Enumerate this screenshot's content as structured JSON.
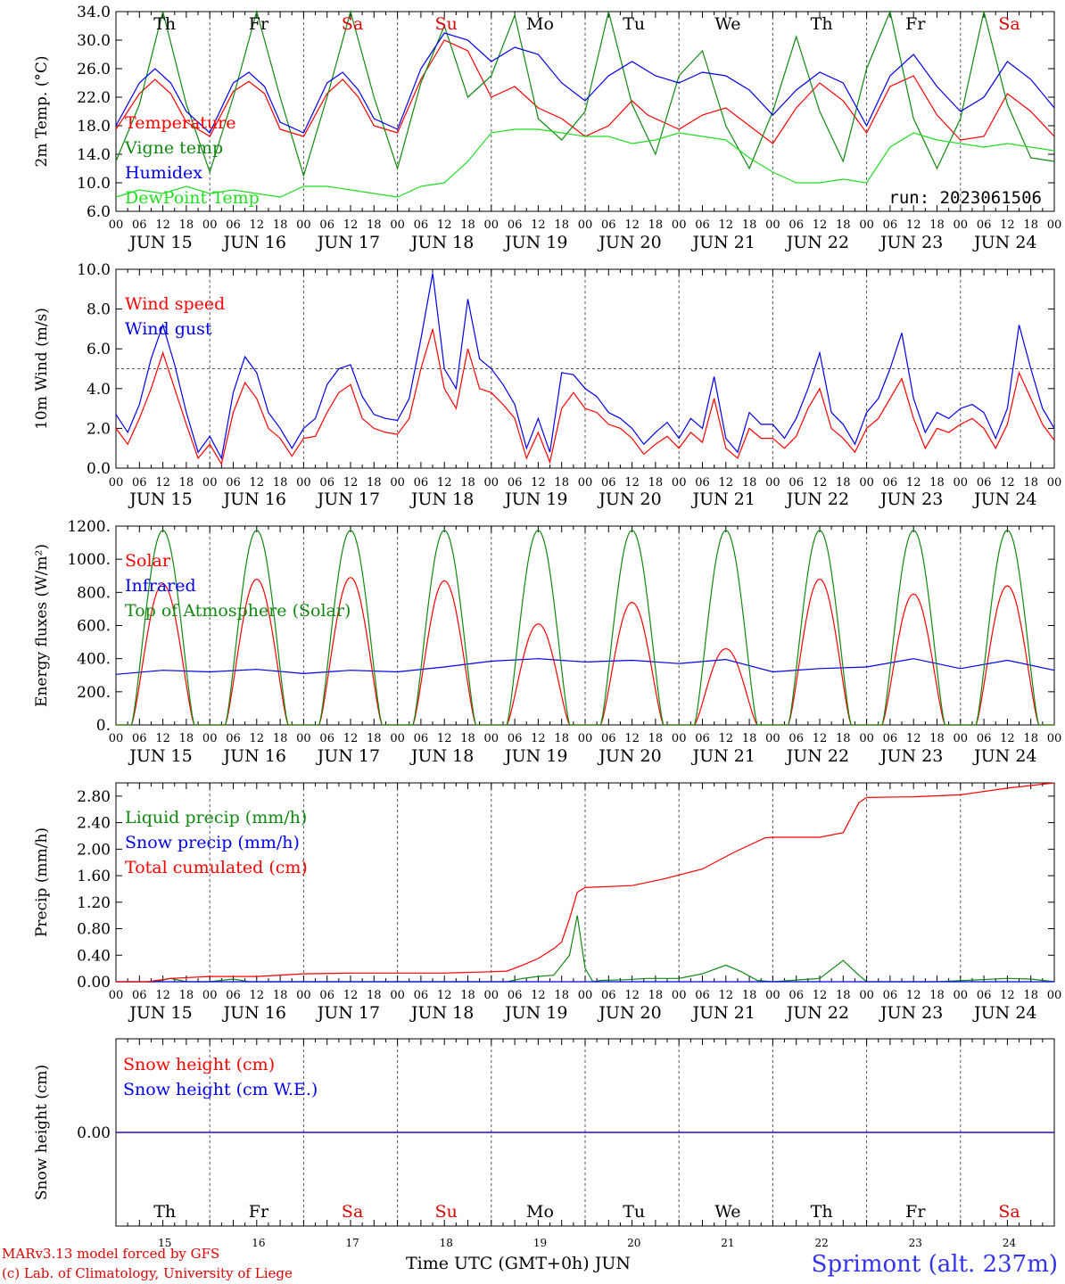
{
  "days": [
    "Th",
    "Fr",
    "Sa",
    "Su",
    "Mo",
    "Tu",
    "We",
    "Th",
    "Fr",
    "Sa"
  ],
  "weekend_days": [
    "Sa",
    "Su"
  ],
  "dates": [
    "JUN 15",
    "JUN 16",
    "JUN 17",
    "JUN 18",
    "JUN 19",
    "JUN 20",
    "JUN 21",
    "JUN 22",
    "JUN 23",
    "JUN 24"
  ],
  "date_numbers": [
    "15",
    "16",
    "17",
    "18",
    "19",
    "20",
    "21",
    "22",
    "23",
    "24"
  ],
  "hour_ticks": [
    "00",
    "06",
    "12",
    "18"
  ],
  "last_tick": "00",
  "colors": {
    "temperature": "#ff0000",
    "vigne": "#118811",
    "humidex": "#0000ee",
    "dewpoint": "#22dd22",
    "solar": "#ff0000",
    "infrared": "#0000ee",
    "toa": "#118811",
    "liquid": "#118811",
    "snow": "#0000ee",
    "cumulated": "#ff0000",
    "snowheight": "#ff0000",
    "snowwe": "#0000ee"
  },
  "footer": {
    "model": "MARv3.13 model forced by GFS",
    "lab": "(c) Lab. of Climatology, University of Liege",
    "xlabel": "Time UTC (GMT+0h) JUN",
    "station": "Sprimont (alt. 237m)"
  },
  "chart_data": [
    {
      "type": "line",
      "id": "temp",
      "ylabel": "2m Temp. (°C)",
      "ylim": [
        6.0,
        34.0
      ],
      "yticks": [
        "6.0",
        "10.0",
        "14.0",
        "18.0",
        "22.0",
        "26.0",
        "30.0",
        "34.0"
      ],
      "run_label": "run: 2023061506",
      "x_unit": "hours since JUN 15 00 UTC",
      "series": [
        {
          "name": "Temperature",
          "color_key": "temperature",
          "x": [
            0,
            6,
            10,
            14,
            18,
            24,
            30,
            34,
            38,
            42,
            48,
            54,
            58,
            62,
            66,
            72,
            78,
            84,
            90,
            96,
            102,
            108,
            114,
            120,
            126,
            132,
            136,
            144,
            150,
            156,
            162,
            168,
            174,
            180,
            186,
            192,
            198,
            204,
            210,
            216,
            222,
            228,
            234,
            240
          ],
          "y": [
            17.5,
            22.5,
            24.5,
            22.5,
            18.5,
            16.5,
            22.8,
            24.2,
            22.5,
            17.5,
            16.5,
            22.5,
            24.5,
            22.0,
            18.0,
            17.0,
            24.5,
            30.0,
            28.5,
            22.0,
            23.5,
            20.5,
            19.0,
            16.5,
            18.0,
            21.5,
            19.5,
            17.5,
            19.5,
            20.5,
            18.0,
            15.5,
            20.5,
            24.0,
            21.5,
            17.0,
            23.5,
            25.0,
            19.5,
            16.0,
            16.5,
            22.5,
            20.0,
            16.5
          ]
        },
        {
          "name": "Vigne temp",
          "color_key": "vigne",
          "x": [
            0,
            6,
            12,
            18,
            24,
            30,
            36,
            42,
            48,
            54,
            60,
            66,
            72,
            78,
            84,
            90,
            96,
            102,
            108,
            114,
            120,
            126,
            132,
            138,
            144,
            150,
            156,
            162,
            168,
            174,
            180,
            186,
            192,
            198,
            204,
            210,
            216,
            222,
            228,
            234,
            240
          ],
          "y": [
            13.0,
            21.0,
            34.0,
            21.0,
            11.5,
            22.0,
            34.0,
            22.0,
            11.0,
            22.0,
            34.0,
            22.0,
            12.0,
            24.0,
            32.0,
            22.0,
            25.0,
            33.5,
            19.0,
            16.0,
            20.0,
            34.0,
            21.0,
            14.0,
            25.0,
            28.5,
            18.0,
            12.0,
            20.0,
            30.5,
            20.0,
            13.0,
            26.0,
            34.0,
            19.0,
            12.0,
            19.0,
            34.0,
            21.0,
            13.5,
            13.0
          ]
        },
        {
          "name": "Humidex",
          "color_key": "humidex",
          "x": [
            0,
            6,
            10,
            14,
            18,
            24,
            30,
            34,
            38,
            42,
            48,
            54,
            58,
            62,
            66,
            72,
            78,
            84,
            90,
            96,
            102,
            108,
            114,
            120,
            126,
            132,
            138,
            144,
            150,
            156,
            162,
            168,
            174,
            180,
            186,
            192,
            198,
            204,
            210,
            216,
            222,
            228,
            234,
            240
          ],
          "y": [
            18.0,
            24.0,
            26.0,
            24.0,
            20.0,
            17.0,
            24.0,
            25.5,
            23.5,
            18.5,
            17.0,
            24.0,
            25.5,
            23.0,
            19.0,
            17.5,
            26.0,
            31.0,
            30.0,
            27.0,
            29.0,
            28.0,
            24.0,
            21.5,
            25.0,
            27.0,
            25.0,
            24.0,
            25.5,
            25.0,
            23.0,
            19.5,
            23.0,
            25.5,
            24.0,
            18.0,
            25.0,
            28.0,
            23.5,
            20.0,
            22.0,
            27.0,
            24.5,
            20.5
          ]
        },
        {
          "name": "DewPoint Temp",
          "color_key": "dewpoint",
          "x": [
            0,
            6,
            12,
            18,
            24,
            30,
            36,
            42,
            48,
            54,
            60,
            66,
            72,
            78,
            84,
            90,
            96,
            102,
            108,
            114,
            120,
            126,
            132,
            138,
            144,
            150,
            156,
            162,
            168,
            174,
            180,
            186,
            192,
            198,
            204,
            210,
            216,
            222,
            228,
            234,
            240
          ],
          "y": [
            8.0,
            9.0,
            8.5,
            9.5,
            8.5,
            9.0,
            8.5,
            8.0,
            9.5,
            9.5,
            9.0,
            8.5,
            8.0,
            9.5,
            10.0,
            13.0,
            17.0,
            17.5,
            17.5,
            17.0,
            16.5,
            16.5,
            15.5,
            16.0,
            17.0,
            16.5,
            16.0,
            13.5,
            11.5,
            10.0,
            10.0,
            10.5,
            10.0,
            15.0,
            17.0,
            16.0,
            15.5,
            15.0,
            15.5,
            15.0,
            14.5
          ]
        }
      ]
    },
    {
      "type": "line",
      "id": "wind",
      "ylabel": "10m Wind (m/s)",
      "ylim": [
        0.0,
        10.0
      ],
      "yticks": [
        "0.0",
        "2.0",
        "4.0",
        "6.0",
        "8.0",
        "10.0"
      ],
      "threshold": 5.0,
      "x_unit": "hours since JUN 15 00 UTC",
      "series": [
        {
          "name": "Wind speed",
          "color_key": "temperature",
          "x": [
            0,
            3,
            6,
            9,
            12,
            15,
            18,
            21,
            24,
            27,
            30,
            33,
            36,
            39,
            42,
            45,
            48,
            51,
            54,
            57,
            60,
            63,
            66,
            69,
            72,
            75,
            78,
            81,
            84,
            87,
            90,
            93,
            96,
            99,
            102,
            105,
            108,
            111,
            114,
            117,
            120,
            123,
            126,
            129,
            132,
            135,
            138,
            141,
            144,
            147,
            150,
            153,
            156,
            159,
            162,
            165,
            168,
            171,
            174,
            177,
            180,
            183,
            186,
            189,
            192,
            195,
            198,
            201,
            204,
            207,
            210,
            213,
            216,
            219,
            222,
            225,
            228,
            231,
            234,
            237,
            240
          ],
          "y": [
            2.0,
            1.2,
            2.5,
            4.0,
            5.8,
            4.0,
            2.2,
            0.5,
            1.2,
            0.2,
            2.8,
            4.3,
            3.5,
            2.0,
            1.5,
            0.6,
            1.5,
            1.6,
            2.8,
            3.8,
            4.2,
            2.5,
            2.0,
            1.8,
            1.7,
            2.5,
            5.0,
            7.0,
            4.0,
            3.0,
            6.0,
            4.0,
            3.8,
            3.2,
            2.5,
            0.5,
            1.8,
            0.3,
            3.0,
            3.8,
            3.0,
            2.8,
            2.2,
            2.0,
            1.5,
            0.7,
            1.2,
            1.6,
            1.0,
            1.8,
            1.3,
            3.5,
            1.0,
            0.5,
            2.0,
            1.5,
            1.5,
            1.0,
            1.6,
            3.0,
            4.0,
            2.0,
            1.5,
            0.8,
            2.0,
            2.5,
            3.5,
            4.5,
            2.5,
            1.0,
            2.0,
            1.8,
            2.2,
            2.5,
            2.0,
            1.0,
            2.2,
            4.8,
            3.5,
            2.2,
            1.4
          ]
        },
        {
          "name": "Wind gust",
          "color_key": "humidex",
          "x": [
            0,
            3,
            6,
            9,
            12,
            15,
            18,
            21,
            24,
            27,
            30,
            33,
            36,
            39,
            42,
            45,
            48,
            51,
            54,
            57,
            60,
            63,
            66,
            69,
            72,
            75,
            78,
            81,
            84,
            87,
            90,
            93,
            96,
            99,
            102,
            105,
            108,
            111,
            114,
            117,
            120,
            123,
            126,
            129,
            132,
            135,
            138,
            141,
            144,
            147,
            150,
            153,
            156,
            159,
            162,
            165,
            168,
            171,
            174,
            177,
            180,
            183,
            186,
            189,
            192,
            195,
            198,
            201,
            204,
            207,
            210,
            213,
            216,
            219,
            222,
            225,
            228,
            231,
            234,
            237,
            240
          ],
          "y": [
            2.7,
            1.8,
            3.2,
            5.5,
            7.2,
            5.2,
            2.8,
            0.8,
            1.6,
            0.5,
            3.8,
            5.6,
            4.8,
            2.8,
            2.0,
            1.0,
            2.0,
            2.5,
            4.2,
            5.0,
            5.2,
            3.6,
            2.7,
            2.5,
            2.4,
            3.5,
            6.5,
            9.8,
            5.0,
            4.0,
            8.5,
            5.5,
            5.0,
            4.2,
            3.2,
            1.0,
            2.5,
            0.8,
            4.8,
            4.7,
            4.0,
            3.6,
            2.8,
            2.5,
            2.0,
            1.2,
            1.8,
            2.3,
            1.5,
            2.5,
            2.0,
            4.6,
            1.5,
            0.8,
            2.8,
            2.2,
            2.2,
            1.5,
            2.5,
            4.0,
            5.8,
            2.8,
            2.2,
            1.2,
            2.8,
            3.5,
            5.0,
            6.8,
            3.5,
            1.8,
            2.8,
            2.5,
            3.0,
            3.2,
            2.8,
            1.5,
            3.0,
            7.2,
            5.0,
            3.0,
            2.0
          ]
        }
      ]
    },
    {
      "type": "line",
      "id": "flux",
      "ylabel": "Energy fluxes (W/m²)",
      "ylim": [
        0,
        1200
      ],
      "yticks": [
        "0.",
        "200.",
        "400.",
        "600.",
        "800.",
        "1000.",
        "1200."
      ],
      "x_unit": "hours since JUN 15 00 UTC",
      "series": [
        {
          "name": "Solar",
          "color_key": "solar",
          "day_peaks": [
            850,
            880,
            890,
            870,
            610,
            740,
            460,
            880,
            790,
            840
          ],
          "day_shape": "daylight_bell_04_to_20h"
        },
        {
          "name": "Infrared",
          "color_key": "infrared",
          "x": [
            0,
            12,
            24,
            36,
            48,
            60,
            72,
            84,
            96,
            108,
            120,
            132,
            144,
            156,
            168,
            180,
            192,
            204,
            216,
            228,
            240
          ],
          "y": [
            305,
            330,
            320,
            335,
            310,
            330,
            320,
            350,
            385,
            400,
            380,
            390,
            370,
            395,
            320,
            340,
            350,
            400,
            340,
            390,
            330
          ]
        },
        {
          "name": "Top of Atmosphere (Solar)",
          "color_key": "toa",
          "day_peaks": [
            1175,
            1175,
            1175,
            1175,
            1175,
            1175,
            1175,
            1175,
            1175,
            1175
          ],
          "day_shape": "daylight_bell_04_to_20h"
        }
      ]
    },
    {
      "type": "line",
      "id": "precip",
      "ylabel": "Precip (mm/h)",
      "ylim": [
        0.0,
        3.0
      ],
      "yticks": [
        "0.00",
        "0.40",
        "0.80",
        "1.20",
        "1.60",
        "2.00",
        "2.40",
        "2.80"
      ],
      "x_unit": "hours since JUN 15 00 UTC",
      "series": [
        {
          "name": "Liquid precip (mm/h)",
          "color_key": "liquid",
          "x": [
            0,
            10,
            14,
            18,
            24,
            30,
            34,
            40,
            48,
            96,
            100,
            104,
            108,
            112,
            116,
            118,
            120,
            122,
            124,
            130,
            136,
            144,
            150,
            156,
            160,
            164,
            168,
            180,
            186,
            190,
            192,
            210,
            228,
            234,
            240
          ],
          "y": [
            0,
            0,
            0.05,
            0,
            0,
            0.04,
            0,
            0,
            0,
            0,
            0,
            0.05,
            0.08,
            0.1,
            0.4,
            1.0,
            0.2,
            0,
            0.02,
            0.03,
            0.05,
            0.05,
            0.12,
            0.25,
            0.15,
            0.02,
            0,
            0.05,
            0.32,
            0.1,
            0,
            0,
            0.05,
            0.04,
            0
          ]
        },
        {
          "name": "Snow precip (mm/h)",
          "color_key": "snow",
          "x": [
            0,
            240
          ],
          "y": [
            0,
            0
          ]
        },
        {
          "name": "Total cumulated (cm)",
          "color_key": "cumulated",
          "x": [
            0,
            8,
            14,
            24,
            36,
            48,
            60,
            84,
            96,
            100,
            104,
            108,
            112,
            114,
            116,
            118,
            120,
            132,
            140,
            150,
            158,
            166,
            168,
            180,
            186,
            190,
            192,
            204,
            216,
            228,
            240
          ],
          "y": [
            0,
            0,
            0.05,
            0.08,
            0.08,
            0.12,
            0.13,
            0.13,
            0.15,
            0.16,
            0.25,
            0.35,
            0.5,
            0.6,
            0.95,
            1.35,
            1.42,
            1.45,
            1.55,
            1.7,
            1.95,
            2.17,
            2.18,
            2.18,
            2.25,
            2.7,
            2.78,
            2.79,
            2.82,
            2.92,
            3.0
          ]
        }
      ]
    },
    {
      "type": "line",
      "id": "snow",
      "ylabel": "Snow height (cm)",
      "ylim": [
        -1,
        1
      ],
      "yticks": [
        "0.00"
      ],
      "x_unit": "hours since JUN 15 00 UTC",
      "series": [
        {
          "name": "Snow height (cm)",
          "color_key": "snowheight",
          "x": [
            0,
            240
          ],
          "y": [
            0,
            0
          ]
        },
        {
          "name": "Snow height (cm W.E.)",
          "color_key": "snowwe",
          "x": [
            0,
            240
          ],
          "y": [
            0,
            0
          ]
        }
      ]
    }
  ]
}
